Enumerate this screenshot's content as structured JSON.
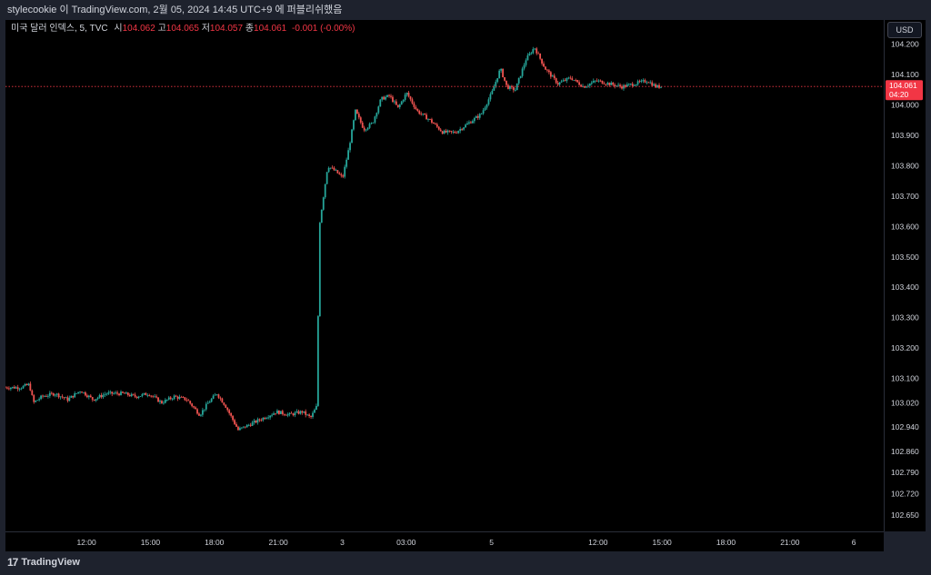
{
  "header": {
    "caption": "stylecookie 이 TradingView.com, 2월 05, 2024 14:45 UTC+9 에 퍼블리쉬했음"
  },
  "legend": {
    "symbol": "미국 달러 인덱스, 5, TVC",
    "open_label": "시",
    "open_value": "104.062",
    "high_label": "고",
    "high_value": "104.065",
    "low_label": "저",
    "low_value": "104.057",
    "close_label": "종",
    "close_value": "104.061",
    "change": "-0.001 (-0.00%)"
  },
  "currency_button": "USD",
  "current_price": {
    "price": "104.061",
    "countdown": "04:20"
  },
  "footer": {
    "brand": "TradingView"
  },
  "colors": {
    "up": "#26a69a",
    "down": "#ef5350",
    "price_line": "#f23645",
    "background": "#000000"
  },
  "chart_data": {
    "type": "candlestick",
    "ylim": [
      102.62,
      104.25
    ],
    "y_ticks": [
      {
        "value": 104.2,
        "label": "104.200"
      },
      {
        "value": 104.1,
        "label": "104.100"
      },
      {
        "value": 104.0,
        "label": "104.000"
      },
      {
        "value": 103.9,
        "label": "103.900"
      },
      {
        "value": 103.8,
        "label": "103.800"
      },
      {
        "value": 103.7,
        "label": "103.700"
      },
      {
        "value": 103.6,
        "label": "103.600"
      },
      {
        "value": 103.5,
        "label": "103.500"
      },
      {
        "value": 103.4,
        "label": "103.400"
      },
      {
        "value": 103.3,
        "label": "103.300"
      },
      {
        "value": 103.2,
        "label": "103.200"
      },
      {
        "value": 103.1,
        "label": "103.100"
      },
      {
        "value": 103.02,
        "label": "103.020"
      },
      {
        "value": 102.94,
        "label": "102.940"
      },
      {
        "value": 102.86,
        "label": "102.860"
      },
      {
        "value": 102.79,
        "label": "102.790"
      },
      {
        "value": 102.72,
        "label": "102.720"
      },
      {
        "value": 102.65,
        "label": "102.650"
      }
    ],
    "x_ticks": [
      {
        "hour": 12,
        "label": "12:00"
      },
      {
        "hour": 15,
        "label": "15:00"
      },
      {
        "hour": 18,
        "label": "18:00"
      },
      {
        "hour": 21,
        "label": "21:00"
      },
      {
        "hour": 24,
        "label": "3"
      },
      {
        "hour": 27,
        "label": "03:00"
      },
      {
        "hour": 31,
        "label": "5"
      },
      {
        "hour": 36,
        "label": "12:00"
      },
      {
        "hour": 39,
        "label": "15:00"
      },
      {
        "hour": 42,
        "label": "18:00"
      },
      {
        "hour": 45,
        "label": "21:00"
      },
      {
        "hour": 48,
        "label": "6"
      }
    ],
    "xlim": [
      8.2,
      49.4
    ],
    "last_price": 104.061,
    "path": [
      [
        8.2,
        103.07
      ],
      [
        9.0,
        103.07
      ],
      [
        9.4,
        103.08
      ],
      [
        9.6,
        103.02
      ],
      [
        10.0,
        103.04
      ],
      [
        10.6,
        103.05
      ],
      [
        11.2,
        103.03
      ],
      [
        11.8,
        103.06
      ],
      [
        12.4,
        103.03
      ],
      [
        13.0,
        103.05
      ],
      [
        13.8,
        103.05
      ],
      [
        14.4,
        103.04
      ],
      [
        15.0,
        103.05
      ],
      [
        15.6,
        103.02
      ],
      [
        16.2,
        103.04
      ],
      [
        16.8,
        103.03
      ],
      [
        17.4,
        102.98
      ],
      [
        17.8,
        103.02
      ],
      [
        18.2,
        103.05
      ],
      [
        18.6,
        103.01
      ],
      [
        19.2,
        102.93
      ],
      [
        19.8,
        102.95
      ],
      [
        20.4,
        102.97
      ],
      [
        21.0,
        102.99
      ],
      [
        21.6,
        102.98
      ],
      [
        22.2,
        102.99
      ],
      [
        22.6,
        102.97
      ],
      [
        22.9,
        103.01
      ],
      [
        23.0,
        103.6
      ],
      [
        23.2,
        103.7
      ],
      [
        23.4,
        103.8
      ],
      [
        23.8,
        103.78
      ],
      [
        24.1,
        103.76
      ],
      [
        24.4,
        103.86
      ],
      [
        24.7,
        103.98
      ],
      [
        25.1,
        103.92
      ],
      [
        25.5,
        103.94
      ],
      [
        25.9,
        104.02
      ],
      [
        26.3,
        104.03
      ],
      [
        26.7,
        103.99
      ],
      [
        27.1,
        104.04
      ],
      [
        27.6,
        103.98
      ],
      [
        28.2,
        103.95
      ],
      [
        28.8,
        103.91
      ],
      [
        29.4,
        103.91
      ],
      [
        30.0,
        103.94
      ],
      [
        30.6,
        103.97
      ],
      [
        31.1,
        104.04
      ],
      [
        31.5,
        104.12
      ],
      [
        31.8,
        104.06
      ],
      [
        32.2,
        104.05
      ],
      [
        32.7,
        104.15
      ],
      [
        33.1,
        104.19
      ],
      [
        33.6,
        104.12
      ],
      [
        34.2,
        104.07
      ],
      [
        34.8,
        104.09
      ],
      [
        35.4,
        104.06
      ],
      [
        36.0,
        104.08
      ],
      [
        36.6,
        104.07
      ],
      [
        37.2,
        104.06
      ],
      [
        37.8,
        104.07
      ],
      [
        38.4,
        104.08
      ],
      [
        38.8,
        104.06
      ],
      [
        39.0,
        104.061
      ]
    ]
  }
}
